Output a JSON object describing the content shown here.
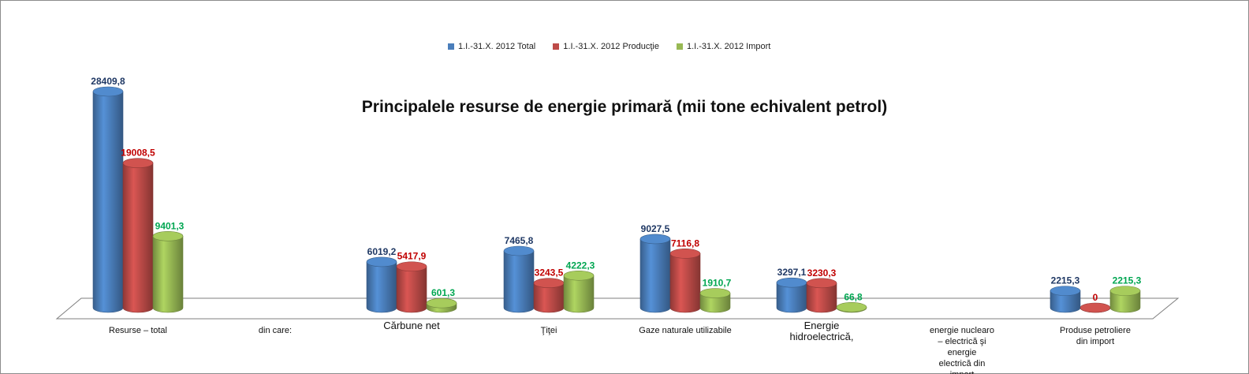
{
  "chart_data": {
    "type": "bar",
    "title": "Principalele resurse de energie primară (mii tone echivalent petrol)",
    "xlabel": "",
    "ylabel": "",
    "categories": [
      "Resurse – total",
      "din care:",
      "Cărbune net",
      "Ţiţei",
      "Gaze naturale utilizabile",
      "Energie hidroelectrică,",
      "energie nuclearo – electrică şi energie electrică din import",
      "Produse petroliere din import"
    ],
    "series": [
      {
        "name": "1.I.-31.X. 2012 Total",
        "color": "#4a7ebb",
        "label_color": "#1f3864",
        "values": [
          28409.8,
          null,
          6019.2,
          7465.8,
          9027.5,
          3297.1,
          null,
          2215.3
        ],
        "labels": [
          "28409,8",
          "",
          "6019,2",
          "7465,8",
          "9027,5",
          "3297,1",
          "",
          "2215,3"
        ]
      },
      {
        "name": "1.I.-31.X. 2012 Producţie",
        "color": "#be4b48",
        "label_color": "#c00000",
        "values": [
          19008.5,
          null,
          5417.9,
          3243.5,
          7116.8,
          3230.3,
          null,
          0
        ],
        "labels": [
          "19008,5",
          "",
          "5417,9",
          "3243,5",
          "7116,8",
          "3230,3",
          "",
          "0"
        ]
      },
      {
        "name": "1.I.-31.X. 2012 Import",
        "color": "#98b954",
        "label_color": "#00a651",
        "values": [
          9401.3,
          null,
          601.3,
          4222.3,
          1910.7,
          66.8,
          null,
          2215.3
        ],
        "labels": [
          "9401,3",
          "",
          "601,3",
          "4222,3",
          "1910,7",
          "66,8",
          "",
          "2215,3"
        ]
      }
    ],
    "ylim": [
      0,
      28409.8
    ],
    "grid": false,
    "legend_position": "top"
  }
}
